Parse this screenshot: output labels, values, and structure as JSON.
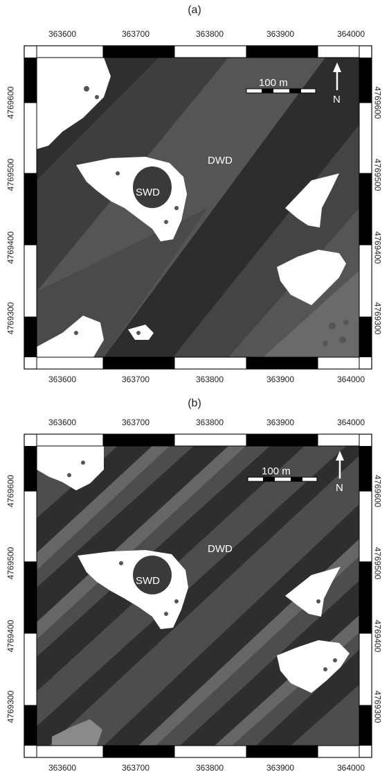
{
  "panels": [
    {
      "label": "(a)",
      "x_ticks": [
        "363600",
        "363700",
        "363800",
        "363900",
        "364000"
      ],
      "y_ticks": [
        "4769600",
        "4769500",
        "4769400",
        "4769300"
      ],
      "scale_label": "100 m",
      "north_label": "N",
      "dwd_label": "DWD",
      "swd_label": "SWD"
    },
    {
      "label": "(b)",
      "x_ticks": [
        "363600",
        "363700",
        "363800",
        "363900",
        "364000"
      ],
      "y_ticks": [
        "4769600",
        "4769500",
        "4769400",
        "4769300"
      ],
      "scale_label": "100 m",
      "north_label": "N",
      "dwd_label": "DWD",
      "swd_label": "SWD"
    }
  ]
}
